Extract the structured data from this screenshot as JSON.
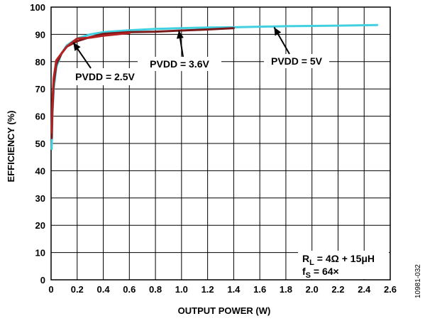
{
  "chart_data": {
    "type": "line",
    "title": "",
    "xlabel": "OUTPUT POWER (W)",
    "ylabel": "EFFICIENCY (%)",
    "xlim": [
      0,
      2.6
    ],
    "ylim": [
      0,
      100
    ],
    "x_ticks": [
      0,
      0.2,
      0.4,
      0.6,
      0.8,
      1.0,
      1.2,
      1.4,
      1.6,
      1.8,
      2.0,
      2.2,
      2.4,
      2.6
    ],
    "x_tick_labels": [
      "0",
      "0.2",
      "0.4",
      "0.6",
      "0.8",
      "1.0",
      "1.2",
      "1.4",
      "1.6",
      "1.8",
      "2.0",
      "2.2",
      "2.4",
      "2.6"
    ],
    "y_ticks": [
      0,
      10,
      20,
      30,
      40,
      50,
      60,
      70,
      80,
      90,
      100
    ],
    "y_tick_labels": [
      "0",
      "10",
      "20",
      "30",
      "40",
      "50",
      "60",
      "70",
      "80",
      "90",
      "100"
    ],
    "grid": true,
    "series": [
      {
        "name": "PVDD = 5V",
        "color": "#40d0e0",
        "x": [
          0.005,
          0.01,
          0.02,
          0.04,
          0.08,
          0.12,
          0.2,
          0.3,
          0.4,
          0.6,
          0.8,
          1.0,
          1.2,
          1.4,
          1.6,
          1.8,
          2.0,
          2.2,
          2.5
        ],
        "y": [
          48,
          60,
          70,
          78,
          83,
          86,
          88.5,
          90,
          90.8,
          91.5,
          92,
          92.3,
          92.5,
          92.6,
          92.8,
          93.0,
          93.1,
          93.2,
          93.4
        ]
      },
      {
        "name": "PVDD = 3.6V",
        "color": "#7a1a1a",
        "x": [
          0.005,
          0.01,
          0.02,
          0.04,
          0.08,
          0.12,
          0.2,
          0.3,
          0.4,
          0.6,
          0.8,
          1.0,
          1.2,
          1.4
        ],
        "y": [
          52,
          62,
          72,
          79,
          83,
          85.5,
          87.5,
          89,
          90.2,
          90.8,
          91,
          91.4,
          91.8,
          92.3
        ]
      },
      {
        "name": "PVDD = 2.5V",
        "color": "#b52020",
        "x": [
          0.005,
          0.01,
          0.02,
          0.04,
          0.08,
          0.12,
          0.2,
          0.3,
          0.4,
          0.5,
          0.6
        ],
        "y": [
          54,
          65,
          74,
          80.5,
          83,
          85.5,
          88.5,
          88.8,
          89.5,
          90,
          90.5
        ]
      }
    ],
    "annotations": [
      {
        "text": "PVDD = 2.5V",
        "target_series": "PVDD = 2.5V"
      },
      {
        "text": "PVDD = 3.6V",
        "target_series": "PVDD = 3.6V"
      },
      {
        "text": "PVDD = 5V",
        "target_series": "PVDD = 5V"
      }
    ],
    "conditions": {
      "line1_main": "R",
      "line1_sub": "L",
      "line1_rest": " = 4Ω + 15μH",
      "line2_main": "f",
      "line2_sub": "S",
      "line2_rest": " = 64×"
    },
    "figure_id": "10981-032"
  }
}
